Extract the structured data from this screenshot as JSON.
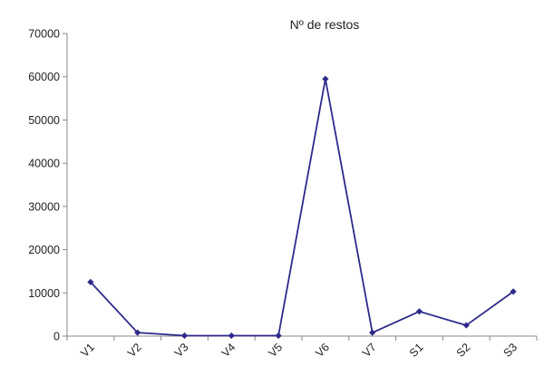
{
  "chart_data": {
    "type": "line",
    "title": "Nº de restos",
    "xlabel": "",
    "ylabel": "",
    "categories": [
      "V1",
      "V2",
      "V3",
      "V4",
      "V5",
      "V6",
      "V7",
      "S1",
      "S2",
      "S3"
    ],
    "series": [
      {
        "values": [
          12500,
          800,
          100,
          100,
          100,
          59500,
          800,
          5700,
          2500,
          10300
        ],
        "color": "#2e2a8a",
        "marker": "diamond"
      }
    ],
    "ylim": [
      0,
      70000
    ],
    "yticks": [
      "0",
      "10000",
      "20000",
      "30000",
      "40000",
      "50000",
      "60000",
      "70000"
    ],
    "grid": false,
    "legend": "none"
  }
}
